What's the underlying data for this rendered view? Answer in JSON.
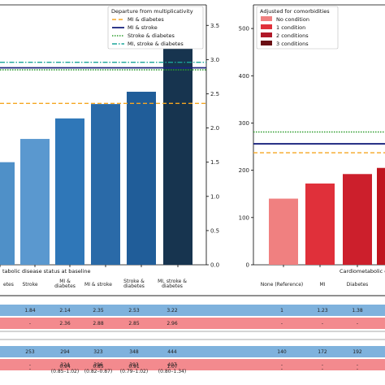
{
  "chart_data": [
    {
      "type": "bar",
      "categories": [
        "",
        "Stroke",
        "MI &\ndiabetes",
        "MI & stroke",
        "Stroke &\ndiabetes",
        "MI, stroke &\ndiabetes"
      ],
      "values": [
        1.5,
        1.84,
        2.14,
        2.35,
        2.53,
        3.22
      ],
      "colors": [
        "#4f90c8",
        "#5a98cf",
        "#2f77b8",
        "#2a6aa8",
        "#205d99",
        "#17344f"
      ],
      "xlabel": "tabolic disease status at baseline",
      "ylim": [
        0,
        3.8
      ],
      "yticks": [
        "0.0",
        "0.5",
        "1.0",
        "1.5",
        "2.0",
        "2.5",
        "3.0",
        "3.5"
      ],
      "legend": {
        "title": "Departure from multiplicativity",
        "position": "top-right",
        "entries": [
          {
            "label": "MI & diabetes",
            "value": 2.36,
            "color": "#f5a623",
            "style": "dashed"
          },
          {
            "label": "MI & stroke",
            "value": 2.88,
            "color": "#1a237e",
            "style": "solid"
          },
          {
            "label": "Stroke & diabetes",
            "value": 2.85,
            "color": "#2e9e2e",
            "style": "dotted"
          },
          {
            "label": "MI, stroke & diabetes",
            "value": 2.96,
            "color": "#1aa59a",
            "style": "dashdot"
          }
        ]
      },
      "grid": false
    },
    {
      "type": "bar",
      "categories": [
        "None (Reference)",
        "MI",
        "Diabetes",
        ""
      ],
      "values": [
        140,
        172,
        192,
        205
      ],
      "colors": [
        "#f08080",
        "#e0303a",
        "#cc1f2c",
        "#c0161f"
      ],
      "xlabel": "Cardiometabolic co",
      "ylim": [
        0,
        550
      ],
      "yticks": [
        "0",
        "100",
        "200",
        "300",
        "400",
        "500"
      ],
      "legend": {
        "title": "Adjusted for comorbidities",
        "position": "top-left",
        "entries": [
          {
            "label": "No condition",
            "color": "#f08080"
          },
          {
            "label": "1 condition",
            "color": "#e0303a"
          },
          {
            "label": "2 conditions",
            "color": "#b01828"
          },
          {
            "label": "3 conditions",
            "color": "#6a0f14"
          }
        ]
      },
      "hlines": [
        {
          "value": 281,
          "color": "#2e9e2e",
          "style": "dotted"
        },
        {
          "value": 256,
          "color": "#1a237e",
          "style": "solid"
        },
        {
          "value": 237,
          "color": "#f5a623",
          "style": "dashed"
        }
      ],
      "grid": false
    },
    {
      "type": "table",
      "header_left": [
        "etes",
        "Stroke",
        "MI &\ndiabetes",
        "MI & stroke",
        "Stroke &\ndiabetes",
        "MI, stroke &\ndiabetes"
      ],
      "header_right": [
        "None (Reference)",
        "MI",
        "Diabetes"
      ],
      "rows": [
        {
          "band": "blue",
          "left": [
            "",
            "1.84",
            "2.14",
            "2.35",
            "2.53",
            "3.22"
          ],
          "right": [
            "1",
            "1.23",
            "1.38"
          ]
        },
        {
          "band": "red",
          "left": [
            "",
            "-",
            "2.36",
            "2.88",
            "2.85",
            "2.96"
          ],
          "right": [
            "-",
            "-",
            "-"
          ]
        },
        {
          "band": "blue",
          "left": [
            "",
            "253",
            "294",
            "323",
            "348",
            "444"
          ],
          "right": [
            "140",
            "172",
            "192"
          ]
        },
        {
          "band": "red",
          "left": [
            "",
            "-",
            "324",
            "396",
            "393",
            "407"
          ],
          "right": [
            "-",
            "-",
            "-"
          ]
        },
        {
          "band": "white",
          "left": [
            "",
            "-",
            "0.94\n(0.85–1.02)",
            "0.85\n(0.82–0.87)",
            "0.91\n(0.79–1.02)",
            "1.07\n(0.80–1.34)"
          ],
          "right": [
            "-",
            "-",
            "-"
          ]
        }
      ]
    }
  ]
}
